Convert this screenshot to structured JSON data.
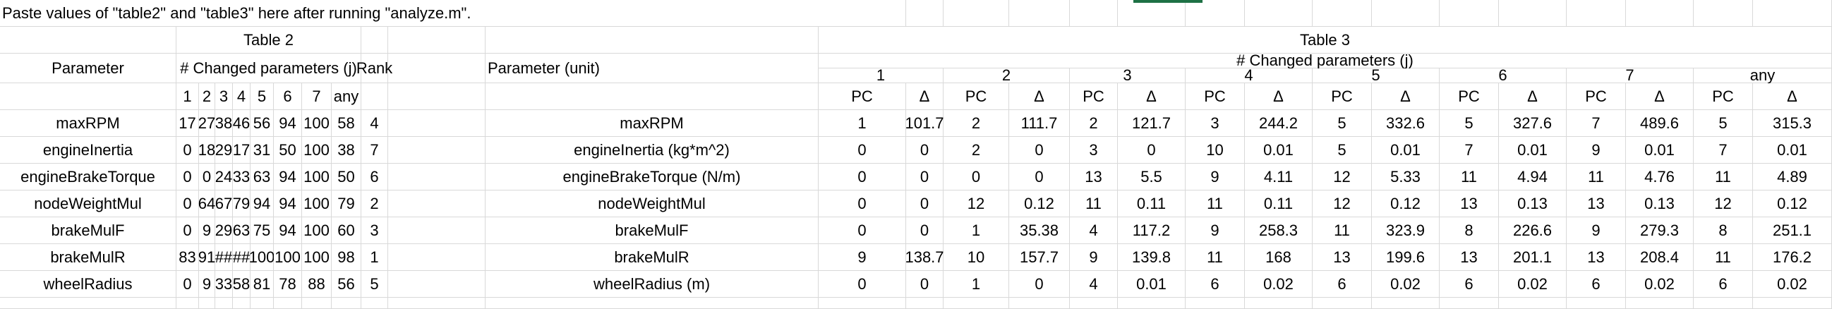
{
  "note": "Paste values of \"table2\" and \"table3\" here after running \"analyze.m\".",
  "table2": {
    "title": "Table 2",
    "param_header": "Parameter",
    "changed_header": "# Changed parameters (j)",
    "rank_header": "Rank",
    "sub_headers": [
      "1",
      "2",
      "3",
      "4",
      "5",
      "6",
      "7",
      "any"
    ],
    "rows": [
      {
        "param": "maxRPM",
        "vals": [
          "17",
          "27",
          "38",
          "46",
          "56",
          "94",
          "100",
          "58"
        ],
        "rank": "4"
      },
      {
        "param": "engineInertia",
        "vals": [
          "0",
          "18",
          "29",
          "17",
          "31",
          "50",
          "100",
          "38"
        ],
        "rank": "7"
      },
      {
        "param": "engineBrakeTorque",
        "vals": [
          "0",
          "0",
          "24",
          "33",
          "63",
          "94",
          "100",
          "50"
        ],
        "rank": "6"
      },
      {
        "param": "nodeWeightMul",
        "vals": [
          "0",
          "64",
          "67",
          "79",
          "94",
          "94",
          "100",
          "79"
        ],
        "rank": "2"
      },
      {
        "param": "brakeMulF",
        "vals": [
          "0",
          "9",
          "29",
          "63",
          "75",
          "94",
          "100",
          "60"
        ],
        "rank": "3"
      },
      {
        "param": "brakeMulR",
        "vals": [
          "83",
          "91",
          "##",
          "##",
          "100",
          "100",
          "100",
          "98"
        ],
        "rank": "1"
      },
      {
        "param": "wheelRadius",
        "vals": [
          "0",
          "9",
          "33",
          "58",
          "81",
          "78",
          "88",
          "56"
        ],
        "rank": "5"
      }
    ]
  },
  "table3": {
    "title": "Table 3",
    "param_header": "Parameter (unit)",
    "changed_header": "# Changed parameters (j)",
    "groups": [
      "1",
      "2",
      "3",
      "4",
      "5",
      "6",
      "7",
      "any"
    ],
    "sub_headers": [
      "PC",
      "Δ"
    ],
    "rows": [
      {
        "param": "maxRPM",
        "vals": [
          "1",
          "101.7",
          "2",
          "111.7",
          "2",
          "121.7",
          "3",
          "244.2",
          "5",
          "332.6",
          "5",
          "327.6",
          "7",
          "489.6",
          "5",
          "315.3"
        ]
      },
      {
        "param": "engineInertia (kg*m^2)",
        "vals": [
          "0",
          "0",
          "2",
          "0",
          "3",
          "0",
          "10",
          "0.01",
          "5",
          "0.01",
          "7",
          "0.01",
          "9",
          "0.01",
          "7",
          "0.01"
        ]
      },
      {
        "param": "engineBrakeTorque (N/m)",
        "vals": [
          "0",
          "0",
          "0",
          "0",
          "13",
          "5.5",
          "9",
          "4.11",
          "12",
          "5.33",
          "11",
          "4.94",
          "11",
          "4.76",
          "11",
          "4.89"
        ]
      },
      {
        "param": "nodeWeightMul",
        "vals": [
          "0",
          "0",
          "12",
          "0.12",
          "11",
          "0.11",
          "11",
          "0.11",
          "12",
          "0.12",
          "13",
          "0.13",
          "13",
          "0.13",
          "12",
          "0.12"
        ]
      },
      {
        "param": "brakeMulF",
        "vals": [
          "0",
          "0",
          "1",
          "35.38",
          "4",
          "117.2",
          "9",
          "258.3",
          "11",
          "323.9",
          "8",
          "226.6",
          "9",
          "279.3",
          "8",
          "251.1"
        ]
      },
      {
        "param": "brakeMulR",
        "vals": [
          "9",
          "138.7",
          "10",
          "157.7",
          "9",
          "139.8",
          "11",
          "168",
          "13",
          "199.6",
          "13",
          "201.1",
          "13",
          "208.4",
          "11",
          "176.2"
        ]
      },
      {
        "param": "wheelRadius (m)",
        "vals": [
          "0",
          "0",
          "1",
          "0",
          "4",
          "0.01",
          "6",
          "0.02",
          "6",
          "0.02",
          "6",
          "0.02",
          "6",
          "0.02",
          "6",
          "0.02"
        ]
      }
    ]
  },
  "colors": {
    "grid": "#d9d9d9",
    "selection": "#1e7145"
  }
}
